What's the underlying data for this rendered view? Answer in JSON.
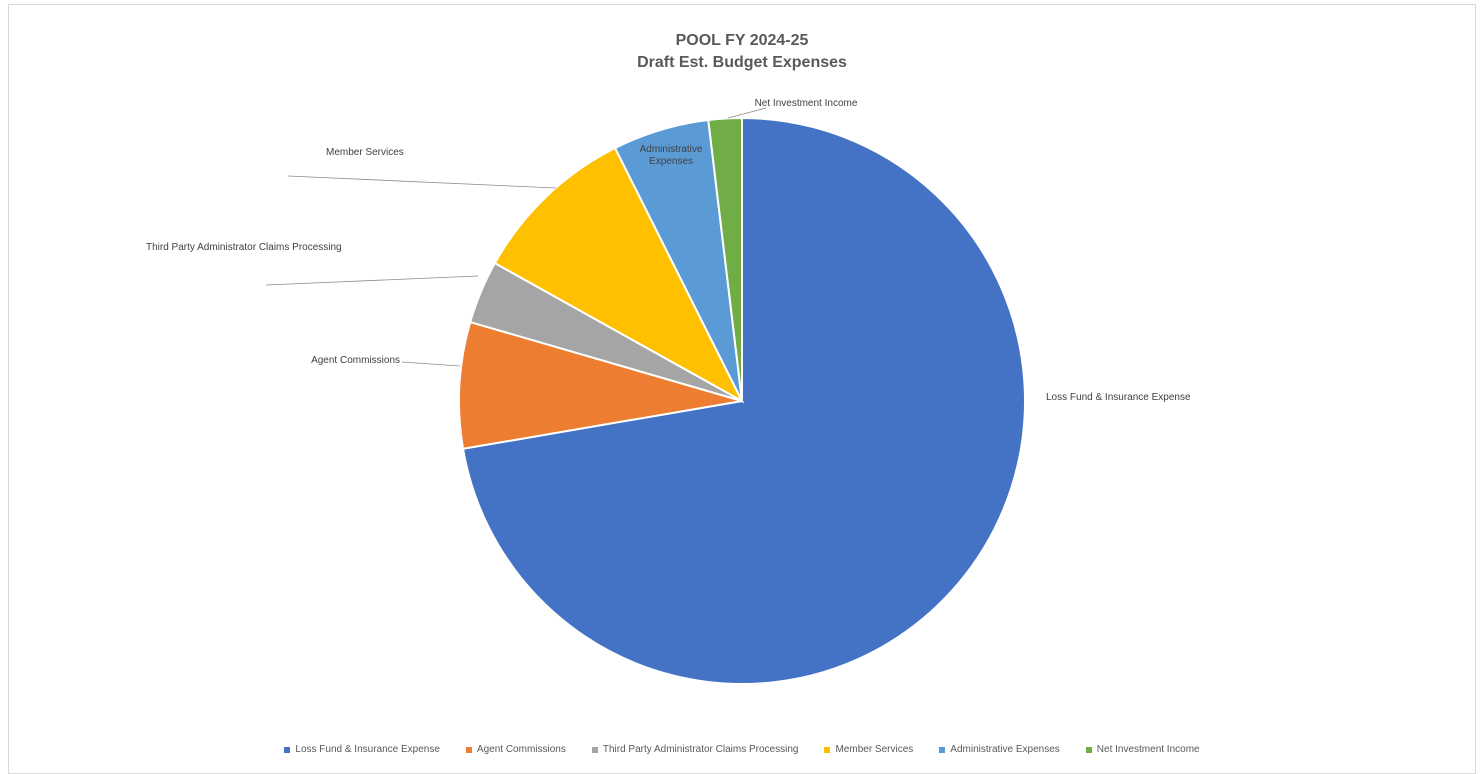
{
  "chart_data": {
    "type": "pie",
    "title": "POOL FY 2024-25",
    "subtitle": "Draft Est. Budget Expenses",
    "legend_position": "bottom",
    "slices": [
      {
        "name": "Loss Fund & Insurance Expense",
        "value": 72.3,
        "color": "#4472C4",
        "label": "Loss Fund & Insurance Expense"
      },
      {
        "name": "Agent Commissions",
        "value": 7.2,
        "color": "#ED7D31",
        "label": "Agent Commissions"
      },
      {
        "name": "Third Party Administrator Claims Processing",
        "value": 3.6,
        "color": "#A5A5A5",
        "label": "Third Party Administrator Claims Processing"
      },
      {
        "name": "Member Services",
        "value": 9.5,
        "color": "#FFC000",
        "label": "Member Services"
      },
      {
        "name": "Administrative Expenses",
        "value": 5.5,
        "color": "#5B9BD5",
        "label": "Administrative Expenses"
      },
      {
        "name": "Net Investment Income",
        "value": 1.9,
        "color": "#70AD47",
        "label": "Net Investment Income"
      }
    ]
  }
}
